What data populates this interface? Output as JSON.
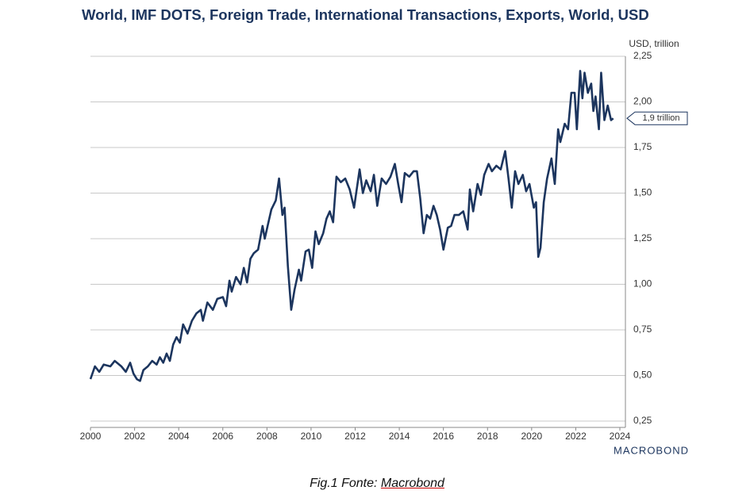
{
  "chart_data": {
    "type": "line",
    "title": "World, IMF DOTS, Foreign Trade, International Transactions, Exports, World, USD",
    "y_axis_label": "USD, trillion",
    "annotation": "1,9 trillion",
    "brand": "MACROBOND",
    "caption": {
      "prefix": "Fig.1 Fonte:",
      "source": "Macrobond"
    },
    "x": [
      2000.0,
      2000.2,
      2000.4,
      2000.6,
      2000.9,
      2001.1,
      2001.4,
      2001.6,
      2001.8,
      2001.95,
      2002.1,
      2002.25,
      2002.4,
      2002.6,
      2002.8,
      2003.0,
      2003.15,
      2003.3,
      2003.45,
      2003.6,
      2003.75,
      2003.9,
      2004.05,
      2004.2,
      2004.4,
      2004.6,
      2004.8,
      2005.0,
      2005.1,
      2005.3,
      2005.55,
      2005.75,
      2006.0,
      2006.15,
      2006.3,
      2006.4,
      2006.6,
      2006.8,
      2006.95,
      2007.1,
      2007.25,
      2007.4,
      2007.6,
      2007.8,
      2007.9,
      2008.05,
      2008.2,
      2008.4,
      2008.55,
      2008.7,
      2008.8,
      2008.95,
      2009.1,
      2009.25,
      2009.45,
      2009.55,
      2009.75,
      2009.9,
      2010.05,
      2010.2,
      2010.35,
      2010.55,
      2010.7,
      2010.85,
      2011.0,
      2011.15,
      2011.35,
      2011.55,
      2011.75,
      2011.95,
      2012.2,
      2012.35,
      2012.5,
      2012.7,
      2012.85,
      2013.0,
      2013.2,
      2013.4,
      2013.6,
      2013.8,
      2013.95,
      2014.1,
      2014.25,
      2014.45,
      2014.65,
      2014.8,
      2014.95,
      2015.1,
      2015.25,
      2015.4,
      2015.55,
      2015.7,
      2015.85,
      2016.0,
      2016.2,
      2016.35,
      2016.5,
      2016.7,
      2016.9,
      2017.1,
      2017.2,
      2017.35,
      2017.55,
      2017.7,
      2017.85,
      2018.05,
      2018.2,
      2018.4,
      2018.6,
      2018.8,
      2018.95,
      2019.1,
      2019.25,
      2019.4,
      2019.6,
      2019.75,
      2019.9,
      2020.1,
      2020.2,
      2020.3,
      2020.4,
      2020.55,
      2020.7,
      2020.9,
      2021.05,
      2021.2,
      2021.3,
      2021.5,
      2021.65,
      2021.8,
      2021.95,
      2022.05,
      2022.2,
      2022.3,
      2022.4,
      2022.55,
      2022.7,
      2022.8,
      2022.9,
      2023.05,
      2023.15,
      2023.3,
      2023.45,
      2023.6,
      2023.7
    ],
    "series": [
      {
        "name": "Exports",
        "color": "#1c355e",
        "values": [
          0.48,
          0.55,
          0.52,
          0.56,
          0.55,
          0.58,
          0.55,
          0.52,
          0.57,
          0.51,
          0.48,
          0.47,
          0.53,
          0.55,
          0.58,
          0.56,
          0.6,
          0.57,
          0.62,
          0.58,
          0.67,
          0.71,
          0.68,
          0.78,
          0.73,
          0.8,
          0.84,
          0.86,
          0.8,
          0.9,
          0.86,
          0.92,
          0.93,
          0.88,
          1.02,
          0.96,
          1.04,
          1.0,
          1.09,
          1.01,
          1.14,
          1.17,
          1.19,
          1.32,
          1.25,
          1.33,
          1.41,
          1.46,
          1.58,
          1.38,
          1.42,
          1.1,
          0.86,
          0.97,
          1.08,
          1.02,
          1.18,
          1.19,
          1.09,
          1.29,
          1.22,
          1.28,
          1.36,
          1.4,
          1.34,
          1.59,
          1.56,
          1.58,
          1.52,
          1.42,
          1.63,
          1.5,
          1.57,
          1.51,
          1.6,
          1.43,
          1.58,
          1.55,
          1.59,
          1.66,
          1.55,
          1.45,
          1.61,
          1.59,
          1.62,
          1.62,
          1.47,
          1.28,
          1.38,
          1.36,
          1.43,
          1.38,
          1.3,
          1.19,
          1.31,
          1.32,
          1.38,
          1.38,
          1.4,
          1.3,
          1.52,
          1.4,
          1.55,
          1.49,
          1.6,
          1.66,
          1.62,
          1.65,
          1.63,
          1.73,
          1.58,
          1.42,
          1.62,
          1.55,
          1.6,
          1.51,
          1.55,
          1.42,
          1.45,
          1.15,
          1.2,
          1.45,
          1.58,
          1.69,
          1.55,
          1.85,
          1.78,
          1.88,
          1.85,
          2.05,
          2.05,
          1.85,
          2.17,
          2.02,
          2.16,
          2.05,
          2.1,
          1.95,
          2.03,
          1.85,
          2.16,
          1.9,
          1.98,
          1.9,
          1.91
        ]
      }
    ],
    "xlim": [
      2000,
      2024
    ],
    "xticks": [
      2000,
      2002,
      2004,
      2006,
      2008,
      2010,
      2012,
      2014,
      2016,
      2018,
      2020,
      2022,
      2024
    ],
    "ylim": [
      0.25,
      2.25
    ],
    "yticks": [
      {
        "value": 0.25,
        "label": "0,25"
      },
      {
        "value": 0.5,
        "label": "0,50"
      },
      {
        "value": 0.75,
        "label": "0,75"
      },
      {
        "value": 1,
        "label": "1,00"
      },
      {
        "value": 1.25,
        "label": "1,25"
      },
      {
        "value": 1.5,
        "label": "1,50"
      },
      {
        "value": 1.75,
        "label": "1,75"
      },
      {
        "value": 2,
        "label": "2,00"
      },
      {
        "value": 2.25,
        "label": "2,25"
      }
    ],
    "grid": true
  }
}
